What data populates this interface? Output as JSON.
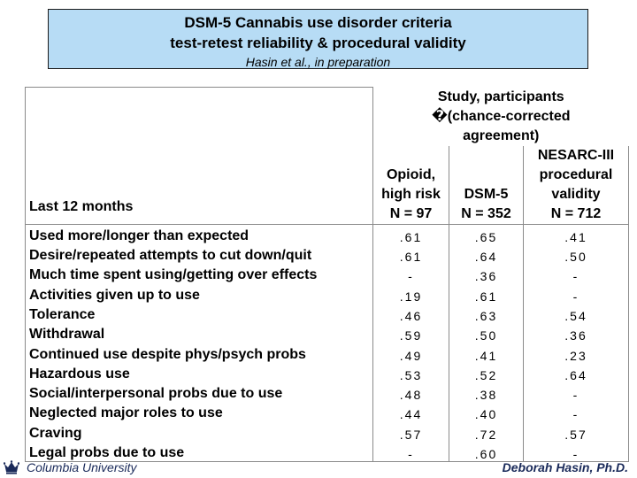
{
  "title": {
    "line1": "DSM-5 Cannabis use disorder criteria",
    "line2": "test-retest reliability & procedural validity",
    "subtitle": "Hasin et al., in preparation"
  },
  "table": {
    "period_label": "Last 12 months",
    "study_header_line1": "Study, participants",
    "study_header_line2": "�(chance-corrected",
    "study_header_line3": "agreement)",
    "columns": [
      {
        "lines": [
          "Opioid,",
          "high risk",
          "N = 97"
        ]
      },
      {
        "lines": [
          "DSM-5",
          "N = 352"
        ]
      },
      {
        "lines": [
          "NESARC-III",
          "procedural",
          "validity",
          "N = 712"
        ]
      }
    ],
    "rows": [
      {
        "label": "Used more/longer than expected",
        "values": [
          ".61",
          ".65",
          ".41"
        ]
      },
      {
        "label": "Desire/repeated attempts to cut down/quit",
        "values": [
          ".61",
          ".64",
          ".50"
        ]
      },
      {
        "label": "Much time spent using/getting over effects",
        "values": [
          "-",
          ".36",
          "-"
        ]
      },
      {
        "label": "Activities given up to use",
        "values": [
          ".19",
          ".61",
          "-"
        ]
      },
      {
        "label": "Tolerance",
        "values": [
          ".46",
          ".63",
          ".54"
        ]
      },
      {
        "label": "Withdrawal",
        "values": [
          ".59",
          ".50",
          ".36"
        ]
      },
      {
        "label": "Continued use despite phys/psych probs",
        "values": [
          ".49",
          ".41",
          ".23"
        ]
      },
      {
        "label": "Hazardous use",
        "values": [
          ".53",
          ".52",
          ".64"
        ]
      },
      {
        "label": "Social/interpersonal probs due to use",
        "values": [
          ".48",
          ".38",
          "-"
        ]
      },
      {
        "label": "Neglected major roles to use",
        "values": [
          ".44",
          ".40",
          "-"
        ]
      },
      {
        "label": "Craving",
        "values": [
          ".57",
          ".72",
          ".57"
        ]
      },
      {
        "label": "Legal probs due to use",
        "values": [
          "-",
          ".60",
          "-"
        ]
      }
    ]
  },
  "footer": {
    "left": "Columbia University",
    "right": "Deborah Hasin, Ph.D.",
    "logo_icon": "columbia-crown-icon"
  }
}
